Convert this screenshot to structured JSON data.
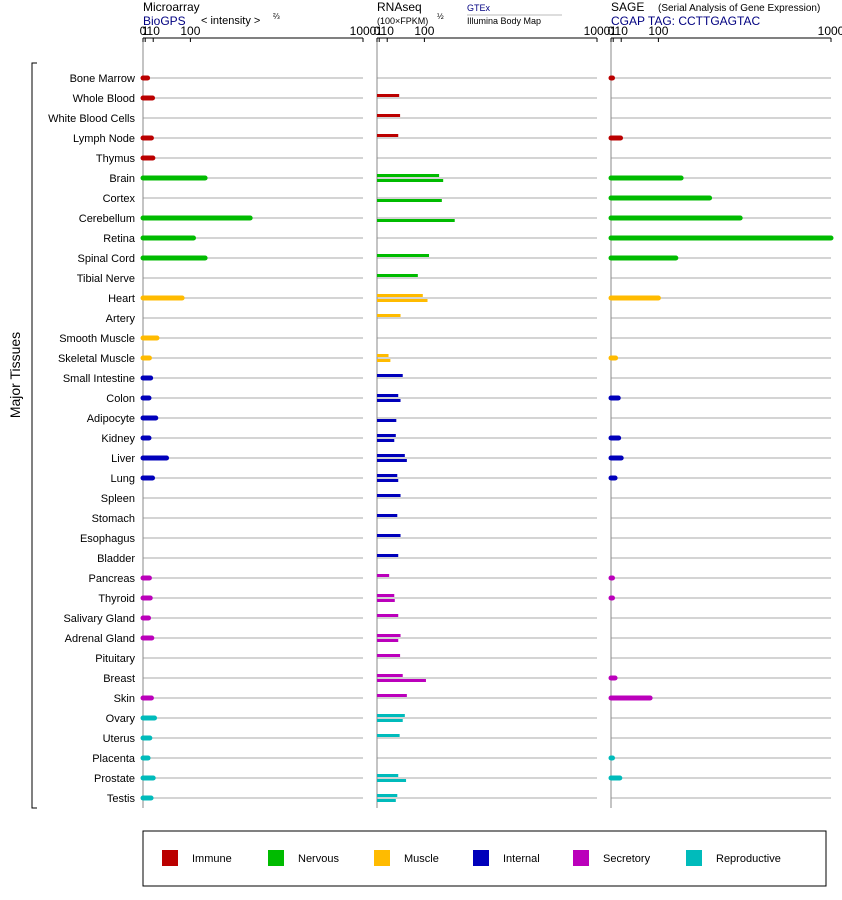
{
  "colors": {
    "Immune": "#bb0000",
    "Nervous": "#00bb00",
    "Muscle": "#ffbb00",
    "Internal": "#0000bb",
    "Secretory": "#bb00bb",
    "Reproductive": "#00bbbb"
  },
  "header": {
    "microarray_title": "Microarray",
    "microarray_source": "BioGPS",
    "microarray_units": "< intensity >",
    "microarray_units_power": "⅔",
    "rnaseq_title": "RNAseq",
    "rnaseq_units": "(100×FPKM)",
    "rnaseq_units_power": "½",
    "rnaseq_source1": "GTEx",
    "rnaseq_source2": "Illumina Body Map",
    "sage_title": "SAGE",
    "sage_subtitle": "(Serial Analysis of Gene Expression)",
    "sage_tag": "CGAP TAG: CCTTGAGTAC"
  },
  "chart_data": {
    "type": "bar",
    "orientation": "horizontal",
    "ylabel": "Major Tissues",
    "axis_ticks": [
      "0",
      "1",
      "10",
      "100",
      "1000"
    ],
    "axis_tick_values": [
      0,
      1,
      10,
      100,
      1000
    ],
    "xlim": [
      0,
      1000
    ],
    "categories": [
      "Bone Marrow",
      "Whole Blood",
      "White Blood Cells",
      "Lymph Node",
      "Thymus",
      "Brain",
      "Cortex",
      "Cerebellum",
      "Retina",
      "Spinal Cord",
      "Tibial Nerve",
      "Heart",
      "Artery",
      "Smooth Muscle",
      "Skeletal Muscle",
      "Small Intestine",
      "Colon",
      "Adipocyte",
      "Kidney",
      "Liver",
      "Lung",
      "Spleen",
      "Stomach",
      "Esophagus",
      "Bladder",
      "Pancreas",
      "Thyroid",
      "Salivary Gland",
      "Adrenal Gland",
      "Pituitary",
      "Breast",
      "Skin",
      "Ovary",
      "Uterus",
      "Placenta",
      "Prostate",
      "Testis"
    ],
    "groups": [
      "Immune",
      "Immune",
      "Immune",
      "Immune",
      "Immune",
      "Nervous",
      "Nervous",
      "Nervous",
      "Nervous",
      "Nervous",
      "Nervous",
      "Muscle",
      "Muscle",
      "Muscle",
      "Muscle",
      "Internal",
      "Internal",
      "Internal",
      "Internal",
      "Internal",
      "Internal",
      "Internal",
      "Internal",
      "Internal",
      "Internal",
      "Secretory",
      "Secretory",
      "Secretory",
      "Secretory",
      "Secretory",
      "Secretory",
      "Secretory",
      "Reproductive",
      "Reproductive",
      "Reproductive",
      "Reproductive",
      "Reproductive"
    ],
    "panels": [
      {
        "name": "Microarray",
        "values": [
          3.0,
          9.0,
          null,
          7.5,
          9.5,
          150,
          null,
          340,
          110,
          150,
          null,
          75,
          null,
          16,
          5.0,
          6.5,
          4.5,
          14,
          4.5,
          35,
          9.0,
          null,
          null,
          null,
          null,
          5.0,
          6.0,
          4.0,
          8.0,
          null,
          null,
          7.5,
          12,
          5.5,
          3.5,
          10,
          7.0
        ]
      },
      {
        "name": "RNAseq GTEx",
        "values": [
          null,
          32,
          34,
          30,
          null,
          150,
          null,
          null,
          null,
          115,
          80,
          95,
          35,
          null,
          12,
          40,
          30,
          null,
          25,
          45,
          28,
          35,
          28,
          35,
          30,
          13,
          22,
          30,
          35,
          34,
          40,
          50,
          45,
          33,
          null,
          30,
          28
        ]
      },
      {
        "name": "RNAseq Illumina Body Map",
        "values": [
          null,
          null,
          null,
          null,
          null,
          165,
          160,
          210,
          null,
          null,
          null,
          110,
          null,
          null,
          15,
          null,
          35,
          26,
          22,
          50,
          30,
          null,
          null,
          null,
          null,
          null,
          23,
          null,
          30,
          null,
          105,
          null,
          40,
          null,
          null,
          48,
          25
        ]
      },
      {
        "name": "SAGE",
        "values": [
          0.2,
          null,
          null,
          9.0,
          null,
          180,
          300,
          450,
          1000,
          160,
          null,
          100,
          null,
          null,
          3.0,
          null,
          6.0,
          null,
          6.5,
          10,
          2.5,
          null,
          null,
          null,
          null,
          0.2,
          0.2,
          null,
          null,
          null,
          2.5,
          75,
          null,
          null,
          0.2,
          8.0,
          null
        ]
      }
    ]
  },
  "legend": [
    {
      "key": "Immune",
      "label": "Immune"
    },
    {
      "key": "Nervous",
      "label": "Nervous"
    },
    {
      "key": "Muscle",
      "label": "Muscle"
    },
    {
      "key": "Internal",
      "label": "Internal"
    },
    {
      "key": "Secretory",
      "label": "Secretory"
    },
    {
      "key": "Reproductive",
      "label": "Reproductive"
    }
  ]
}
